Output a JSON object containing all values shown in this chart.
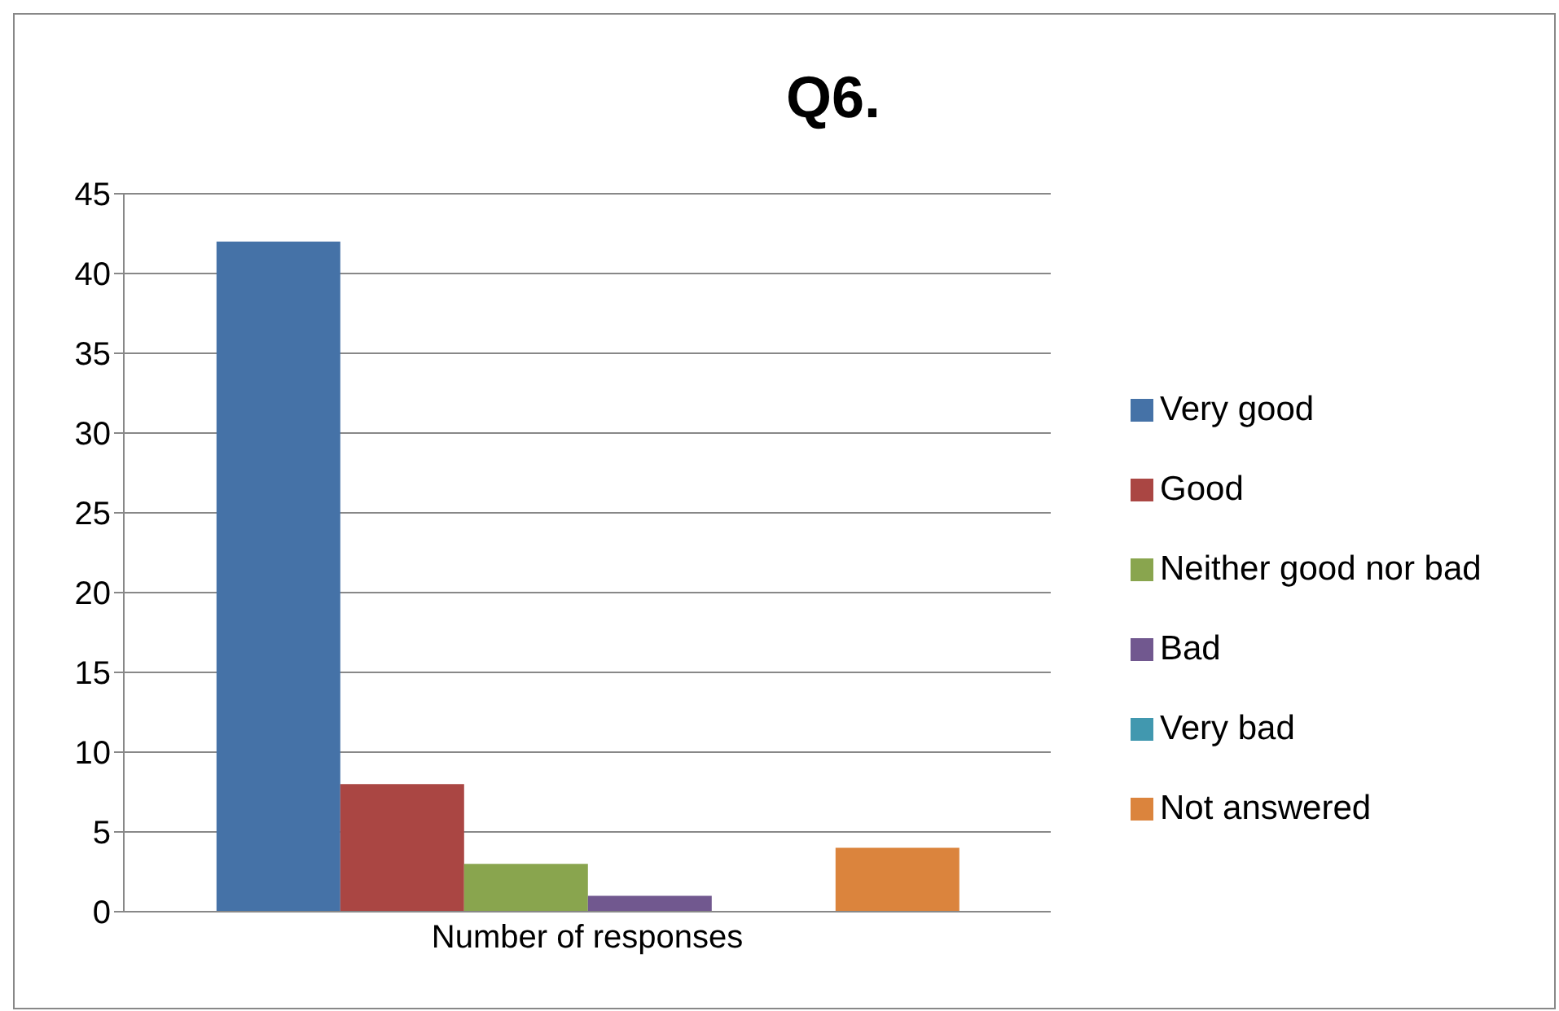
{
  "chart_data": {
    "type": "bar",
    "title": "Q6.",
    "categories": [
      "Number of responses"
    ],
    "series": [
      {
        "name": "Very good",
        "color": "#4572a7",
        "values": [
          42
        ]
      },
      {
        "name": "Good",
        "color": "#aa4643",
        "values": [
          8
        ]
      },
      {
        "name": "Neither good nor bad",
        "color": "#89a54e",
        "values": [
          3
        ]
      },
      {
        "name": "Bad",
        "color": "#71588f",
        "values": [
          1
        ]
      },
      {
        "name": "Very bad",
        "color": "#4198af",
        "values": [
          0
        ]
      },
      {
        "name": "Not answered",
        "color": "#db843d",
        "values": [
          4
        ]
      }
    ],
    "ylim": [
      0,
      45
    ],
    "yticks": [
      0,
      5,
      10,
      15,
      20,
      25,
      30,
      35,
      40,
      45
    ],
    "grid": "y",
    "legend": "right"
  }
}
